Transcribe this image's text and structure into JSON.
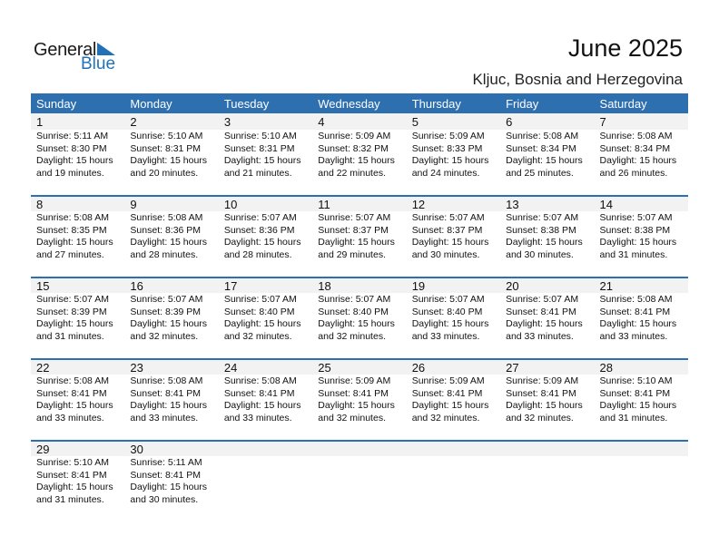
{
  "logo": {
    "general": "General",
    "blue": "Blue"
  },
  "header": {
    "title": "June 2025",
    "location": "Kljuc, Bosnia and Herzegovina"
  },
  "colors": {
    "accent": "#2e6fb0",
    "band": "#f2f2f2"
  },
  "weekdays": [
    "Sunday",
    "Monday",
    "Tuesday",
    "Wednesday",
    "Thursday",
    "Friday",
    "Saturday"
  ],
  "weeks": [
    [
      {
        "day": "1",
        "sunrise": "Sunrise: 5:11 AM",
        "sunset": "Sunset: 8:30 PM",
        "daylight1": "Daylight: 15 hours",
        "daylight2": "and 19 minutes."
      },
      {
        "day": "2",
        "sunrise": "Sunrise: 5:10 AM",
        "sunset": "Sunset: 8:31 PM",
        "daylight1": "Daylight: 15 hours",
        "daylight2": "and 20 minutes."
      },
      {
        "day": "3",
        "sunrise": "Sunrise: 5:10 AM",
        "sunset": "Sunset: 8:31 PM",
        "daylight1": "Daylight: 15 hours",
        "daylight2": "and 21 minutes."
      },
      {
        "day": "4",
        "sunrise": "Sunrise: 5:09 AM",
        "sunset": "Sunset: 8:32 PM",
        "daylight1": "Daylight: 15 hours",
        "daylight2": "and 22 minutes."
      },
      {
        "day": "5",
        "sunrise": "Sunrise: 5:09 AM",
        "sunset": "Sunset: 8:33 PM",
        "daylight1": "Daylight: 15 hours",
        "daylight2": "and 24 minutes."
      },
      {
        "day": "6",
        "sunrise": "Sunrise: 5:08 AM",
        "sunset": "Sunset: 8:34 PM",
        "daylight1": "Daylight: 15 hours",
        "daylight2": "and 25 minutes."
      },
      {
        "day": "7",
        "sunrise": "Sunrise: 5:08 AM",
        "sunset": "Sunset: 8:34 PM",
        "daylight1": "Daylight: 15 hours",
        "daylight2": "and 26 minutes."
      }
    ],
    [
      {
        "day": "8",
        "sunrise": "Sunrise: 5:08 AM",
        "sunset": "Sunset: 8:35 PM",
        "daylight1": "Daylight: 15 hours",
        "daylight2": "and 27 minutes."
      },
      {
        "day": "9",
        "sunrise": "Sunrise: 5:08 AM",
        "sunset": "Sunset: 8:36 PM",
        "daylight1": "Daylight: 15 hours",
        "daylight2": "and 28 minutes."
      },
      {
        "day": "10",
        "sunrise": "Sunrise: 5:07 AM",
        "sunset": "Sunset: 8:36 PM",
        "daylight1": "Daylight: 15 hours",
        "daylight2": "and 28 minutes."
      },
      {
        "day": "11",
        "sunrise": "Sunrise: 5:07 AM",
        "sunset": "Sunset: 8:37 PM",
        "daylight1": "Daylight: 15 hours",
        "daylight2": "and 29 minutes."
      },
      {
        "day": "12",
        "sunrise": "Sunrise: 5:07 AM",
        "sunset": "Sunset: 8:37 PM",
        "daylight1": "Daylight: 15 hours",
        "daylight2": "and 30 minutes."
      },
      {
        "day": "13",
        "sunrise": "Sunrise: 5:07 AM",
        "sunset": "Sunset: 8:38 PM",
        "daylight1": "Daylight: 15 hours",
        "daylight2": "and 30 minutes."
      },
      {
        "day": "14",
        "sunrise": "Sunrise: 5:07 AM",
        "sunset": "Sunset: 8:38 PM",
        "daylight1": "Daylight: 15 hours",
        "daylight2": "and 31 minutes."
      }
    ],
    [
      {
        "day": "15",
        "sunrise": "Sunrise: 5:07 AM",
        "sunset": "Sunset: 8:39 PM",
        "daylight1": "Daylight: 15 hours",
        "daylight2": "and 31 minutes."
      },
      {
        "day": "16",
        "sunrise": "Sunrise: 5:07 AM",
        "sunset": "Sunset: 8:39 PM",
        "daylight1": "Daylight: 15 hours",
        "daylight2": "and 32 minutes."
      },
      {
        "day": "17",
        "sunrise": "Sunrise: 5:07 AM",
        "sunset": "Sunset: 8:40 PM",
        "daylight1": "Daylight: 15 hours",
        "daylight2": "and 32 minutes."
      },
      {
        "day": "18",
        "sunrise": "Sunrise: 5:07 AM",
        "sunset": "Sunset: 8:40 PM",
        "daylight1": "Daylight: 15 hours",
        "daylight2": "and 32 minutes."
      },
      {
        "day": "19",
        "sunrise": "Sunrise: 5:07 AM",
        "sunset": "Sunset: 8:40 PM",
        "daylight1": "Daylight: 15 hours",
        "daylight2": "and 33 minutes."
      },
      {
        "day": "20",
        "sunrise": "Sunrise: 5:07 AM",
        "sunset": "Sunset: 8:41 PM",
        "daylight1": "Daylight: 15 hours",
        "daylight2": "and 33 minutes."
      },
      {
        "day": "21",
        "sunrise": "Sunrise: 5:08 AM",
        "sunset": "Sunset: 8:41 PM",
        "daylight1": "Daylight: 15 hours",
        "daylight2": "and 33 minutes."
      }
    ],
    [
      {
        "day": "22",
        "sunrise": "Sunrise: 5:08 AM",
        "sunset": "Sunset: 8:41 PM",
        "daylight1": "Daylight: 15 hours",
        "daylight2": "and 33 minutes."
      },
      {
        "day": "23",
        "sunrise": "Sunrise: 5:08 AM",
        "sunset": "Sunset: 8:41 PM",
        "daylight1": "Daylight: 15 hours",
        "daylight2": "and 33 minutes."
      },
      {
        "day": "24",
        "sunrise": "Sunrise: 5:08 AM",
        "sunset": "Sunset: 8:41 PM",
        "daylight1": "Daylight: 15 hours",
        "daylight2": "and 33 minutes."
      },
      {
        "day": "25",
        "sunrise": "Sunrise: 5:09 AM",
        "sunset": "Sunset: 8:41 PM",
        "daylight1": "Daylight: 15 hours",
        "daylight2": "and 32 minutes."
      },
      {
        "day": "26",
        "sunrise": "Sunrise: 5:09 AM",
        "sunset": "Sunset: 8:41 PM",
        "daylight1": "Daylight: 15 hours",
        "daylight2": "and 32 minutes."
      },
      {
        "day": "27",
        "sunrise": "Sunrise: 5:09 AM",
        "sunset": "Sunset: 8:41 PM",
        "daylight1": "Daylight: 15 hours",
        "daylight2": "and 32 minutes."
      },
      {
        "day": "28",
        "sunrise": "Sunrise: 5:10 AM",
        "sunset": "Sunset: 8:41 PM",
        "daylight1": "Daylight: 15 hours",
        "daylight2": "and 31 minutes."
      }
    ],
    [
      {
        "day": "29",
        "sunrise": "Sunrise: 5:10 AM",
        "sunset": "Sunset: 8:41 PM",
        "daylight1": "Daylight: 15 hours",
        "daylight2": "and 31 minutes."
      },
      {
        "day": "30",
        "sunrise": "Sunrise: 5:11 AM",
        "sunset": "Sunset: 8:41 PM",
        "daylight1": "Daylight: 15 hours",
        "daylight2": "and 30 minutes."
      },
      null,
      null,
      null,
      null,
      null
    ]
  ]
}
